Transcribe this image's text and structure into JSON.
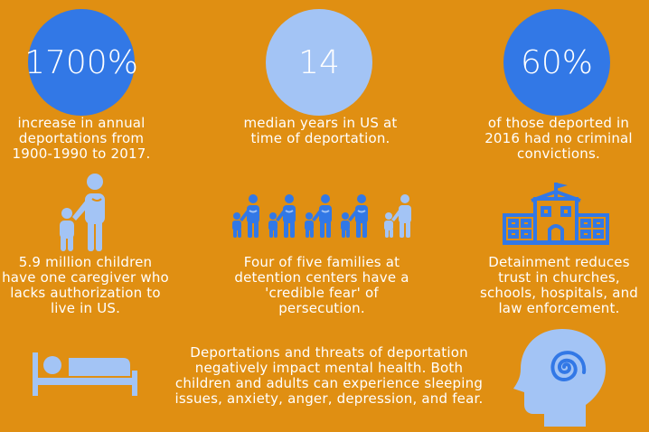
{
  "stats": [
    {
      "value": "1700%",
      "caption": "increase in annual deportations from 1900-1990 to 2017."
    },
    {
      "value": "14",
      "caption": "median years in US at time of deportation."
    },
    {
      "value": "60%",
      "caption": "of those deported in 2016 had no criminal convictions."
    }
  ],
  "facts": [
    {
      "text": "5.9 million children have one caregiver who lacks authorization to live in US.",
      "icon": "parent-child-icon"
    },
    {
      "text": "Four of five families at detention centers have a 'credible fear' of persecution.",
      "icon": "families-icon"
    },
    {
      "text": "Detainment reduces trust in churches, schools, hospitals, and law enforcement.",
      "icon": "building-icon"
    }
  ],
  "mental_health": {
    "text": "Deportations and threats of deportation negatively impact mental health. Both children and adults can experience sleeping issues, anxiety, anger, depression, and fear.",
    "icons": [
      "bed-icon",
      "head-spiral-icon"
    ]
  },
  "colors": {
    "background": "#E08F12",
    "circle_dark": "#3278E6",
    "circle_light": "#A3C4F5",
    "icon": "#A3C4F5",
    "text": "#FFFFFF"
  }
}
